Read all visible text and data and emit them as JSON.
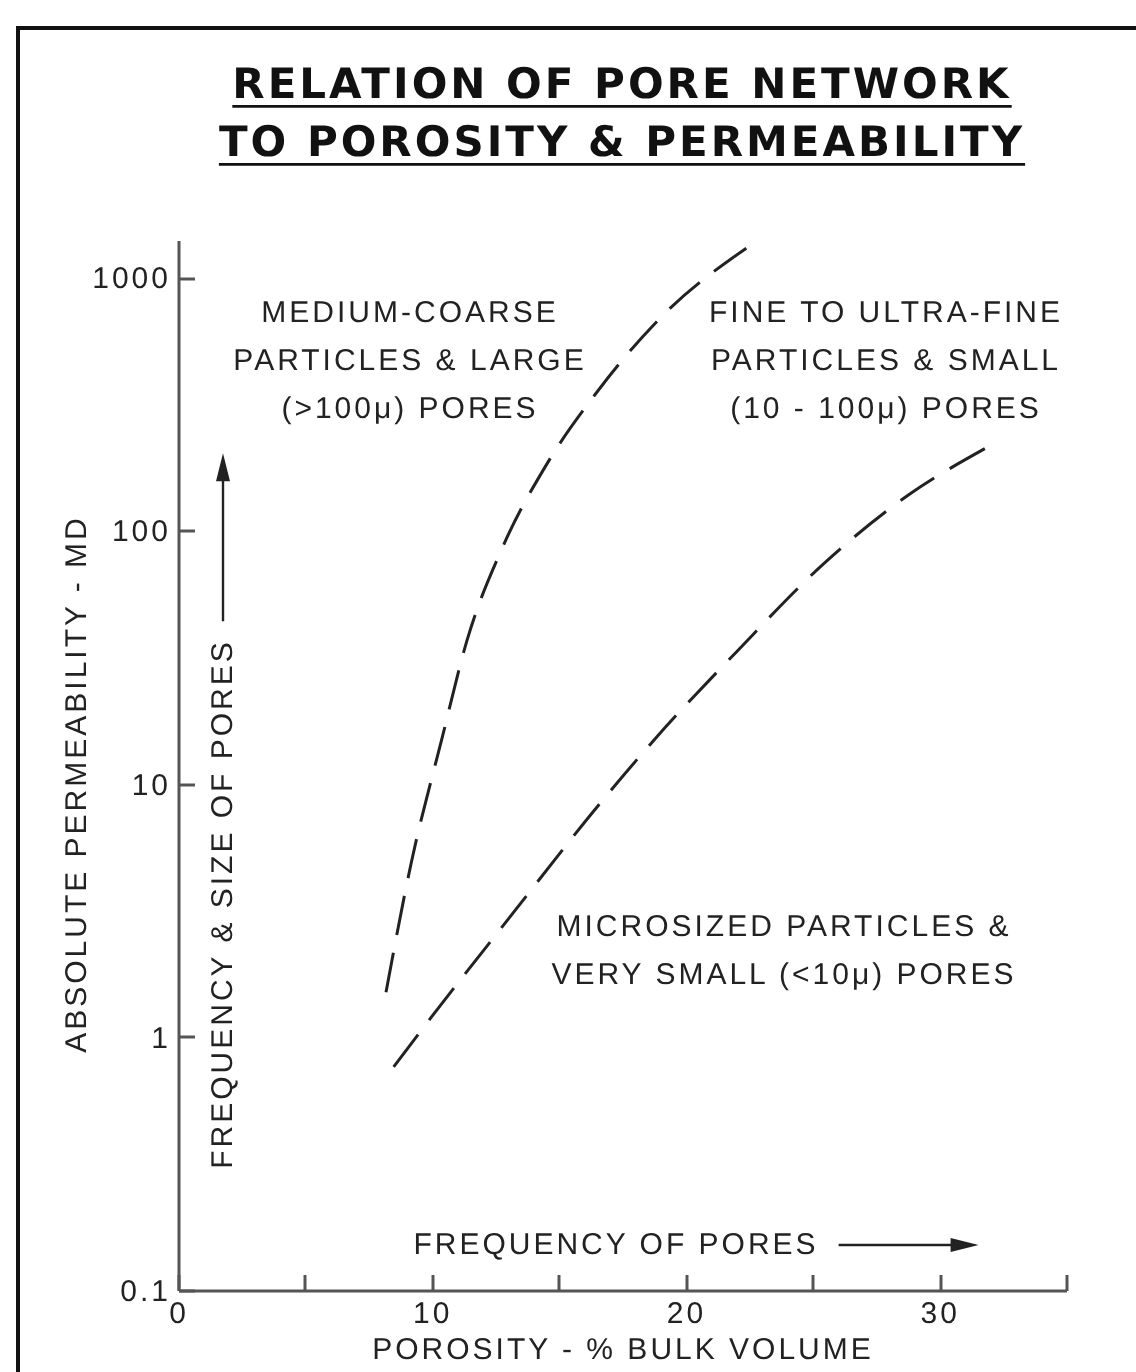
{
  "chart_data": {
    "type": "line",
    "title": "RELATION OF PORE NETWORK\nTO POROSITY & PERMEABILITY",
    "xlabel": "POROSITY - % BULK VOLUME",
    "ylabel": "ABSOLUTE PERMEABILITY - MD",
    "annotations": [
      "MEDIUM-COARSE\nPARTICLES & LARGE\n(>100μ) PORES",
      "FINE TO ULTRA-FINE\nPARTICLES & SMALL\n(10 - 100μ) PORES",
      "MICROSIZED PARTICLES &\nVERY SMALL (<10μ) PORES",
      "FREQUENCY & SIZE OF PORES",
      "FREQUENCY OF PORES"
    ],
    "series": [
      {
        "color": "#222222",
        "x": [
          8.2,
          9.2,
          10.4,
          11.4,
          12.8,
          14.5,
          16.5,
          19.2,
          22.4
        ],
        "values": [
          1.5,
          4.9,
          15,
          37,
          86,
          180,
          350,
          720,
          1300
        ]
      },
      {
        "color": "#222222",
        "x": [
          8.5,
          10.0,
          13.0,
          16.7,
          18.8,
          22.0,
          25.4,
          28.8,
          31.8
        ],
        "values": [
          0.76,
          1.2,
          2.9,
          8.5,
          15,
          33,
          73,
          138,
          210
        ]
      }
    ],
    "xlim": [
      0,
      35
    ],
    "xticks": [
      0,
      {
        "value": 5,
        "label": null
      },
      10,
      {
        "value": 15,
        "label": null
      },
      20,
      {
        "value": 25,
        "label": null
      },
      30,
      {
        "value": 35,
        "label": null
      }
    ],
    "ylim": [
      0.1,
      1400
    ],
    "yticks": [
      0.1,
      1,
      10,
      100,
      1000
    ],
    "log": "y",
    "line_style": "dashed"
  }
}
